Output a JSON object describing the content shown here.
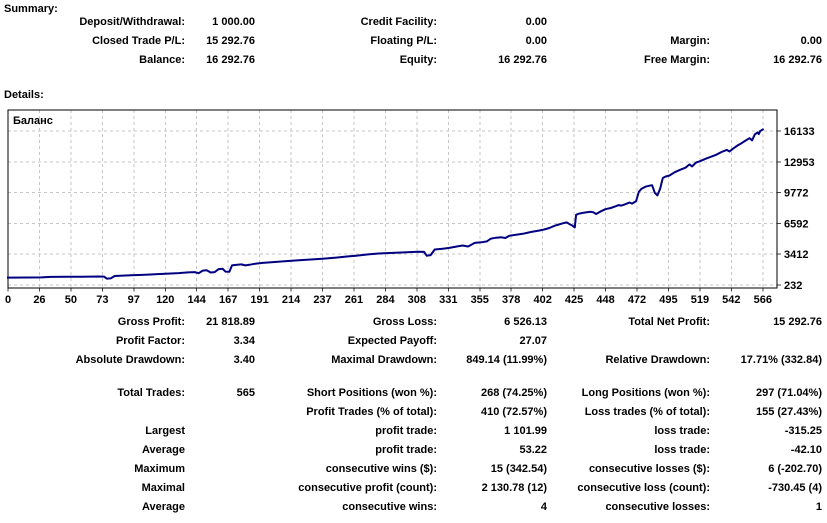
{
  "summary": {
    "heading": "Summary:",
    "rows": [
      {
        "l1": "Deposit/Withdrawal:",
        "v1": "1 000.00",
        "l2": "Credit Facility:",
        "v2": "0.00",
        "l3": "",
        "v3": ""
      },
      {
        "l1": "Closed Trade P/L:",
        "v1": "15 292.76",
        "l2": "Floating P/L:",
        "v2": "0.00",
        "l3": "Margin:",
        "v3": "0.00"
      },
      {
        "l1": "Balance:",
        "v1": "16 292.76",
        "l2": "Equity:",
        "v2": "16 292.76",
        "l3": "Free Margin:",
        "v3": "16 292.76"
      }
    ]
  },
  "details": {
    "heading": "Details:"
  },
  "chart_data": {
    "type": "line",
    "title": "Баланс",
    "xlabel": "",
    "ylabel": "",
    "legend_position": "top-left-inside",
    "grid": true,
    "line_color": "#000080",
    "grid_color": "#c6c6c6",
    "x_ticks": [
      0,
      26,
      50,
      73,
      97,
      120,
      144,
      167,
      191,
      214,
      237,
      261,
      284,
      308,
      331,
      355,
      378,
      402,
      425,
      448,
      472,
      495,
      519,
      542,
      566
    ],
    "y_ticks": [
      232,
      3412,
      6592,
      9772,
      12953,
      16133
    ],
    "xlim": [
      0,
      580
    ],
    "ylim": [
      232,
      16133
    ],
    "series": [
      {
        "name": "Баланс",
        "points": [
          [
            0,
            1000
          ],
          [
            15,
            1010
          ],
          [
            25,
            1020
          ],
          [
            32,
            1070
          ],
          [
            45,
            1075
          ],
          [
            55,
            1085
          ],
          [
            62,
            1095
          ],
          [
            68,
            1110
          ],
          [
            72,
            1100
          ],
          [
            74,
            890
          ],
          [
            77,
            910
          ],
          [
            80,
            1160
          ],
          [
            86,
            1200
          ],
          [
            92,
            1230
          ],
          [
            98,
            1265
          ],
          [
            105,
            1310
          ],
          [
            112,
            1360
          ],
          [
            120,
            1410
          ],
          [
            128,
            1460
          ],
          [
            135,
            1530
          ],
          [
            140,
            1560
          ],
          [
            143,
            1450
          ],
          [
            146,
            1720
          ],
          [
            149,
            1760
          ],
          [
            152,
            1520
          ],
          [
            155,
            1560
          ],
          [
            158,
            1870
          ],
          [
            161,
            1900
          ],
          [
            163,
            1620
          ],
          [
            166,
            1600
          ],
          [
            168,
            2260
          ],
          [
            171,
            2310
          ],
          [
            175,
            2360
          ],
          [
            178,
            2260
          ],
          [
            181,
            2320
          ],
          [
            186,
            2440
          ],
          [
            191,
            2510
          ],
          [
            200,
            2610
          ],
          [
            210,
            2710
          ],
          [
            221,
            2810
          ],
          [
            230,
            2900
          ],
          [
            237,
            2960
          ],
          [
            246,
            3060
          ],
          [
            255,
            3190
          ],
          [
            261,
            3260
          ],
          [
            270,
            3390
          ],
          [
            278,
            3480
          ],
          [
            286,
            3540
          ],
          [
            295,
            3590
          ],
          [
            303,
            3640
          ],
          [
            308,
            3660
          ],
          [
            312,
            3650
          ],
          [
            314,
            3260
          ],
          [
            317,
            3320
          ],
          [
            320,
            3900
          ],
          [
            326,
            3980
          ],
          [
            331,
            4060
          ],
          [
            337,
            4220
          ],
          [
            341,
            4310
          ],
          [
            345,
            4210
          ],
          [
            350,
            4580
          ],
          [
            355,
            4640
          ],
          [
            359,
            4730
          ],
          [
            362,
            5010
          ],
          [
            366,
            5120
          ],
          [
            370,
            5160
          ],
          [
            373,
            5090
          ],
          [
            376,
            5310
          ],
          [
            381,
            5420
          ],
          [
            386,
            5520
          ],
          [
            392,
            5700
          ],
          [
            398,
            5850
          ],
          [
            402,
            5960
          ],
          [
            406,
            6120
          ],
          [
            410,
            6350
          ],
          [
            413,
            6480
          ],
          [
            416,
            6600
          ],
          [
            419,
            6700
          ],
          [
            421,
            6520
          ],
          [
            423,
            6390
          ],
          [
            425,
            6180
          ],
          [
            426,
            7480
          ],
          [
            428,
            7590
          ],
          [
            431,
            7680
          ],
          [
            434,
            7740
          ],
          [
            437,
            7790
          ],
          [
            439,
            7740
          ],
          [
            441,
            7560
          ],
          [
            444,
            7800
          ],
          [
            448,
            8060
          ],
          [
            452,
            8180
          ],
          [
            455,
            8330
          ],
          [
            458,
            8480
          ],
          [
            460,
            8430
          ],
          [
            463,
            8580
          ],
          [
            466,
            8750
          ],
          [
            468,
            8640
          ],
          [
            471,
            8890
          ],
          [
            473,
            9850
          ],
          [
            475,
            10150
          ],
          [
            478,
            10380
          ],
          [
            481,
            10480
          ],
          [
            483,
            10540
          ],
          [
            485,
            9750
          ],
          [
            487,
            9480
          ],
          [
            489,
            10150
          ],
          [
            491,
            11280
          ],
          [
            493,
            11420
          ],
          [
            496,
            11540
          ],
          [
            500,
            11880
          ],
          [
            504,
            12130
          ],
          [
            508,
            12340
          ],
          [
            511,
            12680
          ],
          [
            513,
            12480
          ],
          [
            516,
            12880
          ],
          [
            519,
            13010
          ],
          [
            523,
            13260
          ],
          [
            527,
            13470
          ],
          [
            531,
            13680
          ],
          [
            535,
            13960
          ],
          [
            539,
            14180
          ],
          [
            541,
            14020
          ],
          [
            544,
            14350
          ],
          [
            547,
            14640
          ],
          [
            550,
            14870
          ],
          [
            553,
            15140
          ],
          [
            556,
            15390
          ],
          [
            558,
            15170
          ],
          [
            560,
            15780
          ],
          [
            562,
            15990
          ],
          [
            563,
            15810
          ],
          [
            564,
            16120
          ],
          [
            566,
            16290
          ]
        ]
      }
    ]
  },
  "stats": {
    "rows": [
      {
        "l1": "Gross Profit:",
        "v1": "21 818.89",
        "l2": "Gross Loss:",
        "v2": "6 526.13",
        "l3": "Total Net Profit:",
        "v3": "15 292.76"
      },
      {
        "l1": "Profit Factor:",
        "v1": "3.34",
        "l2": "Expected Payoff:",
        "v2": "27.07",
        "l3": "",
        "v3": ""
      },
      {
        "l1": "Absolute Drawdown:",
        "v1": "3.40",
        "l2": "Maximal Drawdown:",
        "v2": "849.14 (11.99%)",
        "l3": "Relative Drawdown:",
        "v3": "17.71% (332.84)"
      },
      {
        "l1": "Total Trades:",
        "v1": "565",
        "l2": "Short Positions (won %):",
        "v2": "268 (74.25%)",
        "l3": "Long Positions (won %):",
        "v3": "297 (71.04%)"
      },
      {
        "l1": "",
        "v1": "",
        "l2": "Profit Trades (% of total):",
        "v2": "410 (72.57%)",
        "l3": "Loss trades (% of total):",
        "v3": "155 (27.43%)"
      },
      {
        "l1": "Largest",
        "v1": "",
        "l2": "profit trade:",
        "v2": "1 101.99",
        "l3": "loss trade:",
        "v3": "-315.25"
      },
      {
        "l1": "Average",
        "v1": "",
        "l2": "profit trade:",
        "v2": "53.22",
        "l3": "loss trade:",
        "v3": "-42.10"
      },
      {
        "l1": "Maximum",
        "v1": "",
        "l2": "consecutive wins ($):",
        "v2": "15 (342.54)",
        "l3": "consecutive losses ($):",
        "v3": "6 (-202.70)"
      },
      {
        "l1": "Maximal",
        "v1": "",
        "l2": "consecutive profit (count):",
        "v2": "2 130.78 (12)",
        "l3": "consecutive loss (count):",
        "v3": "-730.45 (4)"
      },
      {
        "l1": "Average",
        "v1": "",
        "l2": "consecutive wins:",
        "v2": "4",
        "l3": "consecutive losses:",
        "v3": "1"
      }
    ]
  }
}
